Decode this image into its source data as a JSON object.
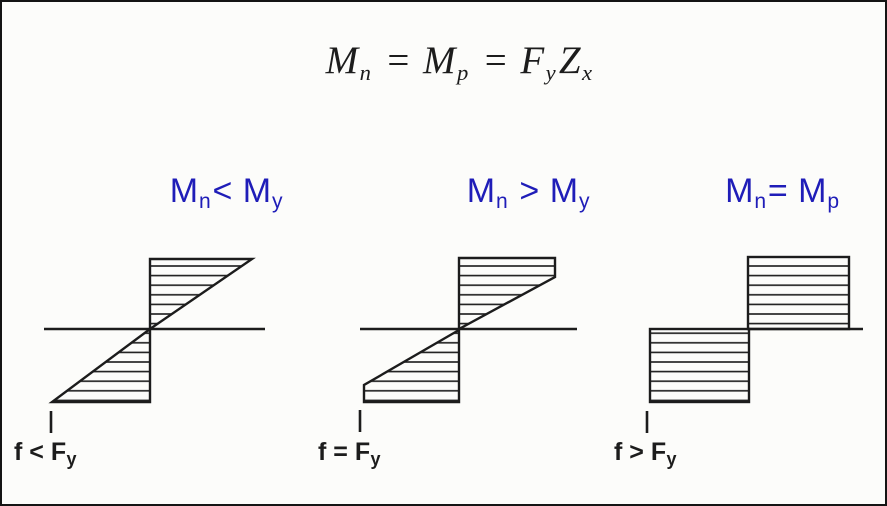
{
  "colors": {
    "ink": "#1c1c1c",
    "accent-blue": "#1f1db8",
    "paper": "#fcfcfa"
  },
  "header_formula": {
    "plain_text": "Mn = Mp = FyZx",
    "segments": [
      {
        "t": "M"
      },
      {
        "t": "n",
        "sub": true
      },
      {
        "t": " = "
      },
      {
        "t": "M"
      },
      {
        "t": "p",
        "sub": true
      },
      {
        "t": " = "
      },
      {
        "t": "F"
      },
      {
        "t": "y",
        "sub": true
      },
      {
        "t": "Z"
      },
      {
        "t": "x",
        "sub": true
      }
    ]
  },
  "panels": [
    {
      "name": "elastic",
      "diagram": "linear-triangular-stress-distribution",
      "moment_condition": {
        "plain_text": "Mn < My",
        "segments": [
          {
            "t": "M"
          },
          {
            "t": "n",
            "sub": true
          },
          {
            "t": "< "
          },
          {
            "t": "M"
          },
          {
            "t": "y",
            "sub": true
          }
        ]
      },
      "stress_condition": {
        "plain_text": "f < Fy",
        "segments": [
          {
            "t": "f < "
          },
          {
            "t": "F"
          },
          {
            "t": "y",
            "sub": true
          }
        ]
      }
    },
    {
      "name": "partially-plastic",
      "diagram": "partially-plastic-stress-distribution",
      "moment_condition": {
        "plain_text": "Mn > My",
        "segments": [
          {
            "t": "M"
          },
          {
            "t": "n",
            "sub": true
          },
          {
            "t": " > "
          },
          {
            "t": "M"
          },
          {
            "t": "y",
            "sub": true
          }
        ]
      },
      "stress_condition": {
        "plain_text": "f = Fy",
        "segments": [
          {
            "t": "f = "
          },
          {
            "t": "F"
          },
          {
            "t": "y",
            "sub": true
          }
        ]
      }
    },
    {
      "name": "fully-plastic",
      "diagram": "fully-plastic-rectangular-stress-distribution",
      "moment_condition": {
        "plain_text": "Mn = Mp",
        "segments": [
          {
            "t": "M"
          },
          {
            "t": "n",
            "sub": true
          },
          {
            "t": "= "
          },
          {
            "t": "M"
          },
          {
            "t": "p",
            "sub": true
          }
        ]
      },
      "stress_condition": {
        "plain_text": "f > Fy",
        "segments": [
          {
            "t": "f > "
          },
          {
            "t": "F"
          },
          {
            "t": "y",
            "sub": true
          }
        ]
      }
    }
  ]
}
